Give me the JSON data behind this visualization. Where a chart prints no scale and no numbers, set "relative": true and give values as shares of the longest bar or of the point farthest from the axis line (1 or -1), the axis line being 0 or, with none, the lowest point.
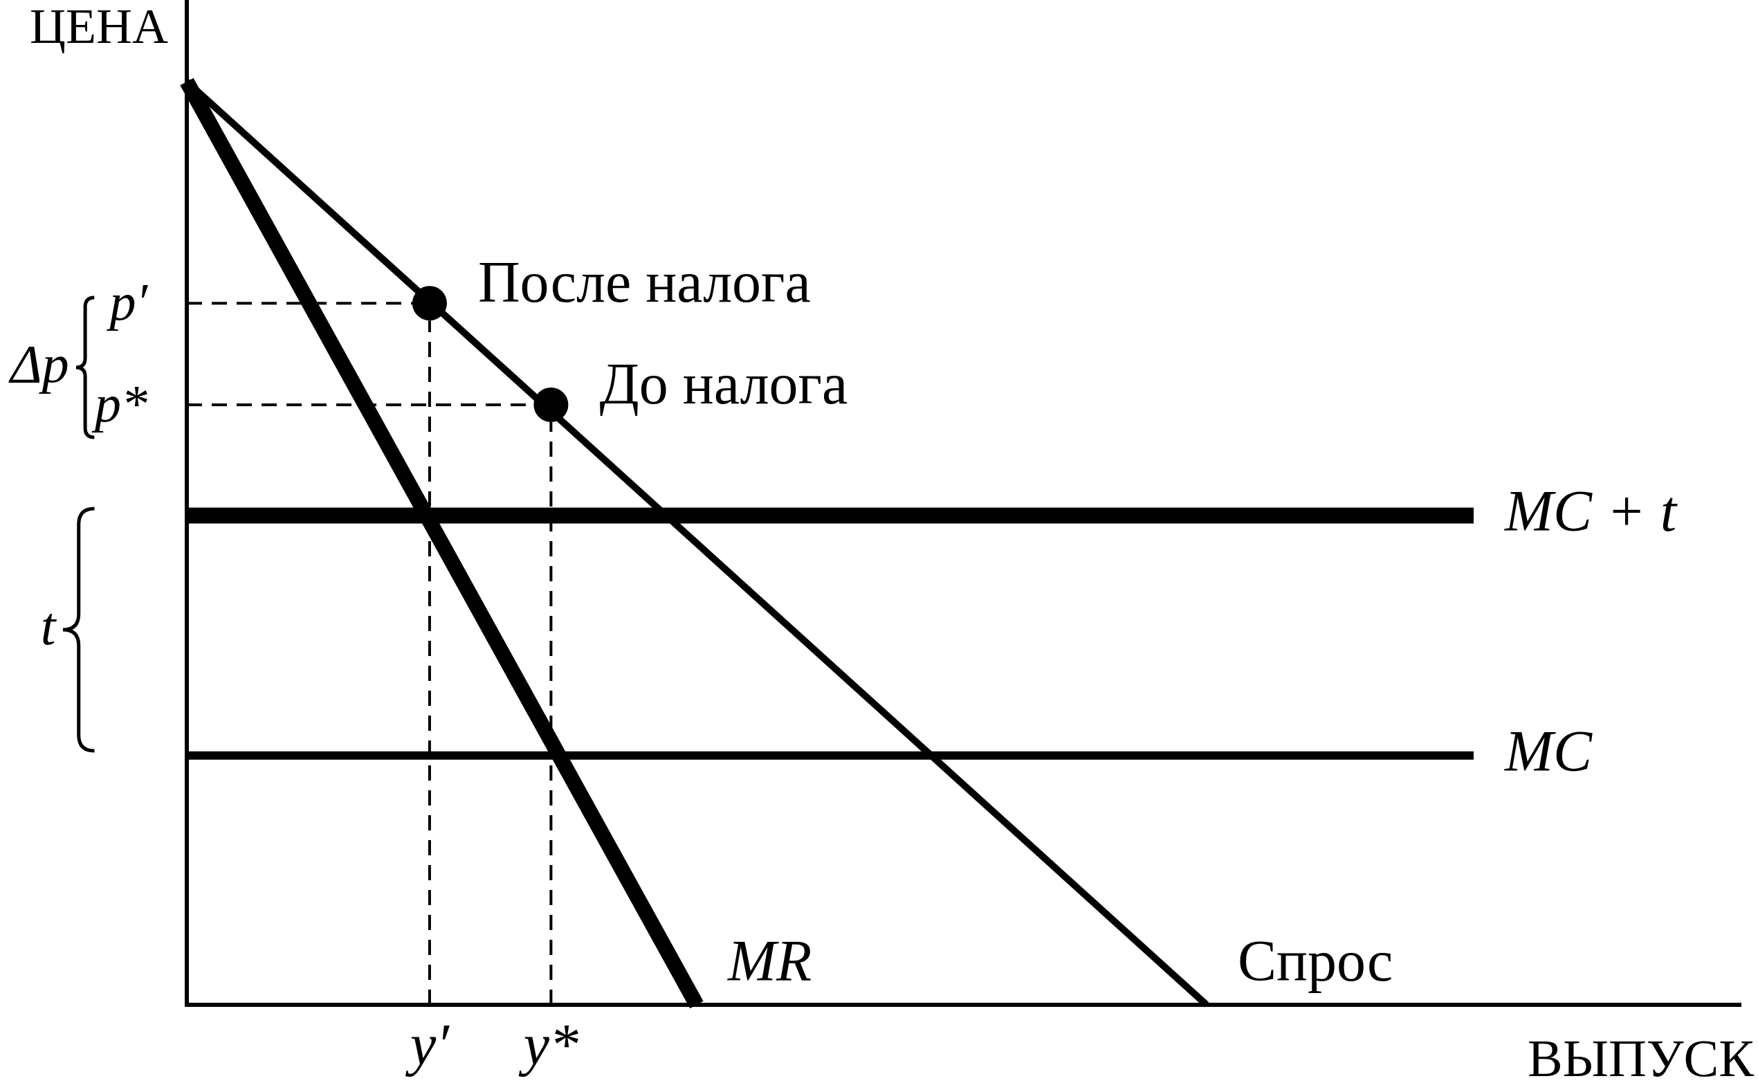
{
  "chart_data": {
    "type": "line",
    "xlabel": "ВЫПУСК",
    "ylabel": "ЦЕНА",
    "relative": true,
    "line_style": "solid",
    "categories": [
      null,
      null,
      null,
      null,
      null,
      null,
      null,
      null,
      null,
      null,
      "y′",
      null,
      null,
      null,
      null,
      "y*",
      null,
      null,
      null,
      null,
      null,
      null,
      null,
      null,
      null,
      null,
      null,
      null,
      null,
      null,
      null,
      null,
      null,
      null,
      null,
      null,
      null,
      null,
      null,
      null,
      null,
      null,
      null,
      null,
      null,
      null,
      null,
      null,
      null,
      null,
      null,
      null,
      null,
      null,
      null,
      null,
      null,
      null,
      null,
      null,
      null,
      null,
      null,
      null,
      null
    ],
    "series": [
      {
        "name": "Спрос",
        "color": "#000000",
        "values": [
          1,
          null,
          null,
          null,
          null,
          null,
          null,
          null,
          null,
          null,
          null,
          null,
          null,
          null,
          null,
          null,
          null,
          null,
          null,
          null,
          null,
          null,
          null,
          null,
          null,
          null,
          null,
          null,
          null,
          null,
          null,
          null,
          null,
          null,
          null,
          null,
          null,
          null,
          null,
          null,
          null,
          null,
          0,
          null,
          null,
          null,
          null,
          null,
          null,
          null,
          null,
          null,
          null,
          null,
          null,
          null,
          null,
          null,
          null,
          null,
          null,
          null,
          null,
          null,
          null
        ]
      },
      {
        "name": "MR",
        "color": "#000000",
        "values": [
          1,
          null,
          null,
          null,
          null,
          null,
          null,
          null,
          null,
          null,
          null,
          null,
          null,
          null,
          null,
          null,
          null,
          null,
          null,
          null,
          null,
          0,
          null,
          null,
          null,
          null,
          null,
          null,
          null,
          null,
          null,
          null,
          null,
          null,
          null,
          null,
          null,
          null,
          null,
          null,
          null,
          null,
          null,
          null,
          null,
          null,
          null,
          null,
          null,
          null,
          null,
          null,
          null,
          null,
          null,
          null,
          null,
          null,
          null,
          null,
          null,
          null,
          null,
          null,
          null
        ]
      },
      {
        "name": "MC + t",
        "color": "#000000",
        "values": [
          0.53,
          null,
          null,
          null,
          null,
          null,
          null,
          null,
          null,
          null,
          null,
          null,
          null,
          null,
          null,
          null,
          null,
          null,
          null,
          null,
          null,
          null,
          null,
          null,
          null,
          null,
          null,
          null,
          null,
          null,
          null,
          null,
          null,
          null,
          null,
          null,
          null,
          null,
          null,
          null,
          null,
          null,
          null,
          null,
          null,
          null,
          null,
          null,
          null,
          null,
          null,
          null,
          null,
          0.53,
          null,
          null,
          null,
          null,
          null,
          null,
          null,
          null,
          null,
          null,
          null
        ]
      },
      {
        "name": "MC",
        "color": "#000000",
        "values": [
          0.27,
          null,
          null,
          null,
          null,
          null,
          null,
          null,
          null,
          null,
          null,
          null,
          null,
          null,
          null,
          null,
          null,
          null,
          null,
          null,
          null,
          null,
          null,
          null,
          null,
          null,
          null,
          null,
          null,
          null,
          null,
          null,
          null,
          null,
          null,
          null,
          null,
          null,
          null,
          null,
          null,
          null,
          null,
          null,
          null,
          null,
          null,
          null,
          null,
          null,
          null,
          null,
          null,
          0.27,
          null,
          null,
          null,
          null,
          null,
          null,
          null,
          null,
          null,
          null,
          null
        ]
      },
      {
        "type": "scatter",
        "color": "#000000",
        "marker": "circle",
        "x": [
          "y′",
          "y*"
        ],
        "values": [
          0.76,
          0.65
        ]
      }
    ],
    "ref_lines": [
      {
        "axis": "y",
        "value": 0.76,
        "label": "p′",
        "color": "#000000",
        "line_style": "dashed"
      },
      {
        "axis": "y",
        "value": 0.65,
        "label": "p*",
        "color": "#000000",
        "line_style": "dashed"
      },
      {
        "axis": "x",
        "value": "y′",
        "color": "#000000",
        "line_style": "dashed"
      },
      {
        "axis": "x",
        "value": "y*",
        "color": "#000000",
        "line_style": "dashed"
      }
    ],
    "annotations": [
      {
        "text": "После налога",
        "x": "y′",
        "y": 0.76
      },
      {
        "text": "До налога",
        "x": "y*",
        "y": 0.65
      },
      "Δp",
      "t"
    ]
  }
}
